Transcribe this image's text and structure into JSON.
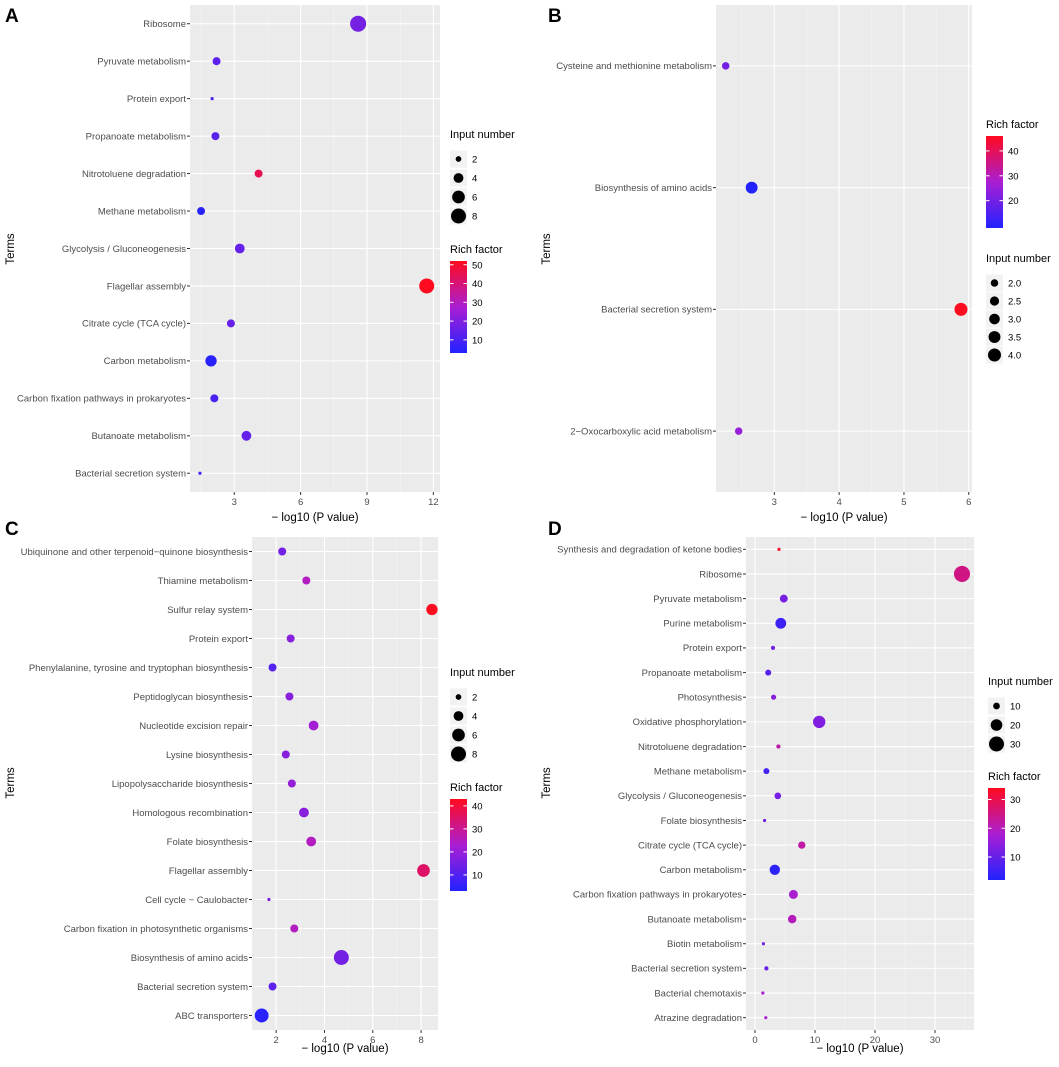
{
  "chart_data": [
    {
      "panel": "A",
      "type": "scatter",
      "ylabel": "Terms",
      "xlabel": "− log10 (P value)",
      "xlim": [
        1.0,
        12.3
      ],
      "xticks": [
        3,
        6,
        9,
        12
      ],
      "terms": [
        "Ribosome",
        "Pyruvate metabolism",
        "Protein export",
        "Propanoate metabolism",
        "Nitrotoluene degradation",
        "Methane metabolism",
        "Glycolysis / Gluconeogenesis",
        "Flagellar assembly",
        "Citrate cycle (TCA cycle)",
        "Carbon metabolism",
        "Carbon fixation pathways in prokaryotes",
        "Butanoate metabolism",
        "Bacterial secretion system"
      ],
      "x": [
        8.6,
        2.2,
        2.0,
        2.15,
        4.1,
        1.5,
        3.25,
        11.7,
        2.85,
        1.95,
        2.1,
        3.55,
        1.45
      ],
      "size": [
        9,
        3,
        1,
        3,
        3,
        3,
        4,
        8,
        3,
        5,
        3,
        4,
        1
      ],
      "rich": [
        18,
        13,
        11,
        13,
        45,
        4,
        15,
        52,
        15,
        4,
        10,
        15,
        8
      ],
      "size_legend": {
        "title": "Input number",
        "values": [
          2,
          4,
          6,
          8
        ],
        "labels": [
          "2",
          "4",
          "6",
          "8"
        ]
      },
      "color_legend": {
        "title": "Rich factor",
        "min": 3,
        "max": 52,
        "ticks": [
          10,
          20,
          30,
          40,
          50
        ],
        "labels": [
          "10",
          "20",
          "30",
          "40",
          "50"
        ]
      },
      "legend_order": "size-first"
    },
    {
      "panel": "B",
      "type": "scatter",
      "ylabel": "Terms",
      "xlabel": "− log10 (P value)",
      "xlim": [
        2.1,
        6.05
      ],
      "xticks": [
        3,
        4,
        5,
        6
      ],
      "terms": [
        "Cysteine and methionine metabolism",
        "Biosynthesis of amino acids",
        "Bacterial secretion system",
        "2−Oxocarboxylic acid metabolism"
      ],
      "x": [
        2.25,
        2.65,
        5.88,
        2.45
      ],
      "size": [
        2.0,
        3.5,
        4.0,
        2.0
      ],
      "rich": [
        20,
        9,
        46,
        25
      ],
      "size_legend": {
        "title": "Input number",
        "values": [
          2.0,
          2.5,
          3.0,
          3.5,
          4.0
        ],
        "labels": [
          "2.0",
          "2.5",
          "3.0",
          "3.5",
          "4.0"
        ]
      },
      "color_legend": {
        "title": "Rich factor",
        "min": 9,
        "max": 46,
        "ticks": [
          20,
          30,
          40
        ],
        "labels": [
          "20",
          "30",
          "40"
        ]
      },
      "legend_order": "color-first"
    },
    {
      "panel": "C",
      "type": "scatter",
      "ylabel": "Terms",
      "xlabel": "− log10 (P value)",
      "xlim": [
        1.0,
        8.7
      ],
      "xticks": [
        2,
        4,
        6,
        8
      ],
      "terms": [
        "Ubiquinone and other terpenoid−quinone biosynthesis",
        "Thiamine metabolism",
        "Sulfur relay system",
        "Protein export",
        "Phenylalanine, tyrosine and tryptophan biosynthesis",
        "Peptidoglycan biosynthesis",
        "Nucleotide excision repair",
        "Lysine biosynthesis",
        "Lipopolysaccharide biosynthesis",
        "Homologous recombination",
        "Folate biosynthesis",
        "Flagellar assembly",
        "Cell cycle − Caulobacter",
        "Carbon fixation in photosynthetic organisms",
        "Biosynthesis of amino acids",
        "Bacterial secretion system",
        "ABC transporters"
      ],
      "x": [
        2.25,
        3.25,
        8.45,
        2.6,
        1.85,
        2.55,
        3.55,
        2.4,
        2.65,
        3.15,
        3.45,
        8.1,
        1.7,
        2.75,
        4.7,
        1.85,
        1.4
      ],
      "size": [
        3,
        3,
        5,
        3,
        3,
        3,
        4,
        3,
        3,
        4,
        4,
        6,
        1,
        3,
        8,
        3,
        7
      ],
      "rich": [
        15,
        25,
        43,
        18,
        10,
        18,
        22,
        18,
        20,
        18,
        25,
        35,
        15,
        25,
        15,
        12,
        4
      ],
      "size_legend": {
        "title": "Input number",
        "values": [
          2,
          4,
          6,
          8
        ],
        "labels": [
          "2",
          "4",
          "6",
          "8"
        ]
      },
      "color_legend": {
        "title": "Rich factor",
        "min": 3,
        "max": 43,
        "ticks": [
          10,
          20,
          30,
          40
        ],
        "labels": [
          "10",
          "20",
          "30",
          "40"
        ]
      },
      "legend_order": "size-first"
    },
    {
      "panel": "D",
      "type": "scatter",
      "ylabel": "Terms",
      "xlabel": "− log10 (P value)",
      "xlim": [
        -1.5,
        36.5
      ],
      "xticks": [
        0,
        10,
        20,
        30
      ],
      "terms": [
        "Synthesis and degradation of ketone bodies",
        "Ribosome",
        "Pyruvate metabolism",
        "Purine metabolism",
        "Protein export",
        "Propanoate metabolism",
        "Photosynthesis",
        "Oxidative phosphorylation",
        "Nitrotoluene degradation",
        "Methane metabolism",
        "Glycolysis / Gluconeogenesis",
        "Folate biosynthesis",
        "Citrate cycle (TCA cycle)",
        "Carbon metabolism",
        "Carbon fixation pathways in prokaryotes",
        "Butanoate metabolism",
        "Biotin metabolism",
        "Bacterial secretion system",
        "Bacterial chemotaxis",
        "Atrazine degradation"
      ],
      "x": [
        4.0,
        34.5,
        4.8,
        4.3,
        3.0,
        2.2,
        3.1,
        10.7,
        3.9,
        1.9,
        3.8,
        1.6,
        7.8,
        3.3,
        6.4,
        6.2,
        1.4,
        1.9,
        1.3,
        1.8
      ],
      "size": [
        3,
        34,
        12,
        18,
        7,
        9,
        8,
        22,
        7,
        9,
        10,
        5,
        11,
        17,
        14,
        13,
        3,
        7,
        3,
        2
      ],
      "rich": [
        33,
        25,
        12,
        5,
        12,
        8,
        14,
        13,
        22,
        6,
        12,
        11,
        22,
        3,
        18,
        20,
        12,
        10,
        18,
        18
      ],
      "size_legend": {
        "title": "Input number",
        "values": [
          10,
          20,
          30
        ],
        "labels": [
          "10",
          "20",
          "30"
        ]
      },
      "color_legend": {
        "title": "Rich factor",
        "min": 2,
        "max": 34,
        "ticks": [
          10,
          20,
          30
        ],
        "labels": [
          "10",
          "20",
          "30"
        ]
      },
      "legend_order": "size-first"
    }
  ]
}
